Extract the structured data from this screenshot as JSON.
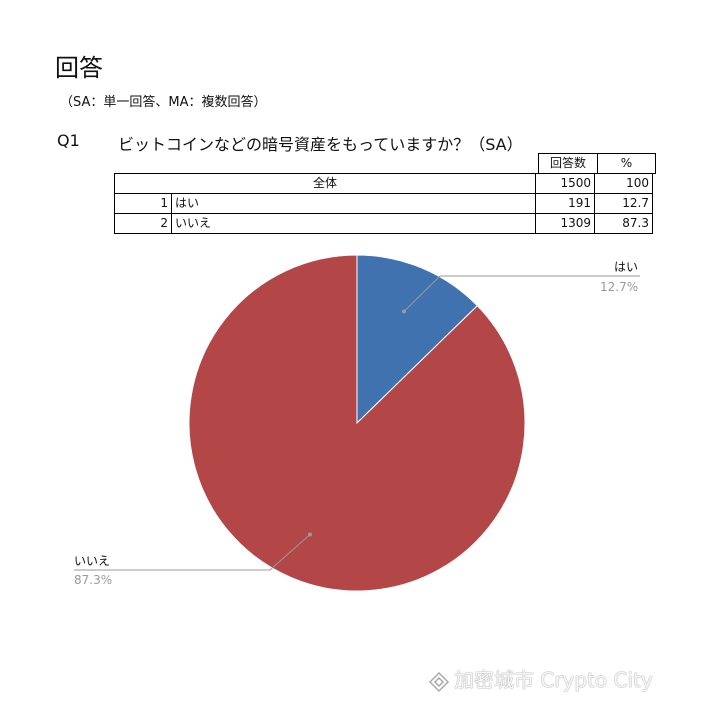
{
  "page": {
    "title": "回答",
    "subtitle": "（SA：単一回答、MA：複数回答）"
  },
  "question": {
    "number": "Q1",
    "text": "ビットコインなどの暗号資産をもっていますか？（SA）"
  },
  "table": {
    "headers": {
      "count": "回答数",
      "pct": "%"
    },
    "total": {
      "label": "全体",
      "count": "1500",
      "pct": "100"
    },
    "rows": [
      {
        "no": "1",
        "label": "はい",
        "count": "191",
        "pct": "12.7"
      },
      {
        "no": "2",
        "label": "いいえ",
        "count": "1309",
        "pct": "87.3"
      }
    ]
  },
  "chart_data": {
    "type": "pie",
    "categories": [
      "はい",
      "いいえ"
    ],
    "values": [
      12.7,
      87.3
    ],
    "value_labels": [
      "12.7%",
      "87.3%"
    ],
    "colors": [
      "#3f72af",
      "#b34646"
    ],
    "title": ""
  },
  "watermark": {
    "text": "加密城市 Crypto City",
    "icon": "diamond-logo-icon"
  }
}
